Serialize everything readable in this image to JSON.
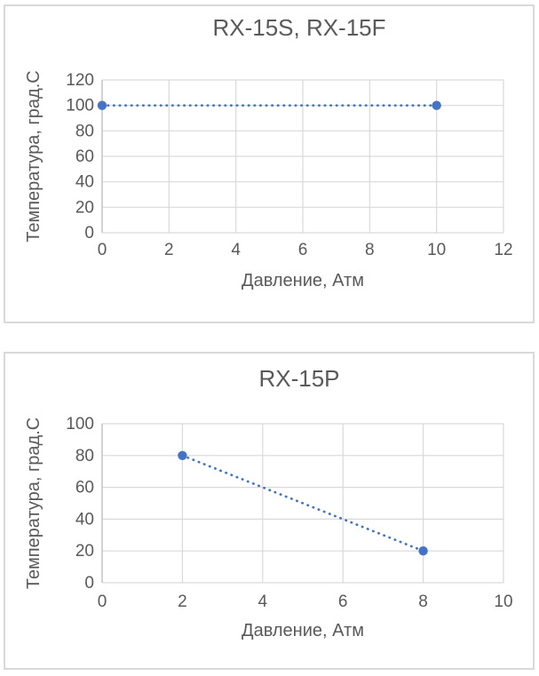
{
  "page": {
    "background_color": "#FFFFFF",
    "panel_border_color": "#D9D9D9"
  },
  "chart_data": [
    {
      "type": "scatter",
      "title": "RX-15S, RX-15F",
      "xlabel": "Давление, Атм",
      "ylabel": "Температура, град.С",
      "xlim": [
        0,
        12
      ],
      "ylim": [
        0,
        120
      ],
      "x_ticks": [
        0,
        2,
        4,
        6,
        8,
        10,
        12
      ],
      "y_ticks": [
        120,
        100,
        80,
        60,
        40,
        20,
        0
      ],
      "grid": true,
      "legend": "none",
      "line_style": "dotted",
      "marker": "circle",
      "series": [
        {
          "name": "RX-15S, RX-15F",
          "points": [
            [
              0,
              100
            ],
            [
              10,
              100
            ]
          ]
        }
      ],
      "colors": {
        "series": "#4472C4",
        "grid": "#D9D9D9",
        "axis_line": "#C6C6C6",
        "text": "#595959"
      }
    },
    {
      "type": "scatter",
      "title": "RX-15P",
      "xlabel": "Давление, Атм",
      "ylabel": "Температура, град.С",
      "xlim": [
        0,
        10
      ],
      "ylim": [
        0,
        100
      ],
      "x_ticks": [
        0,
        2,
        4,
        6,
        8,
        10
      ],
      "y_ticks": [
        100,
        80,
        60,
        40,
        20,
        0
      ],
      "grid": true,
      "legend": "none",
      "line_style": "dotted",
      "marker": "circle",
      "series": [
        {
          "name": "RX-15P",
          "points": [
            [
              2,
              80
            ],
            [
              8,
              20
            ]
          ]
        }
      ],
      "colors": {
        "series": "#4472C4",
        "grid": "#D9D9D9",
        "axis_line": "#C6C6C6",
        "text": "#595959"
      }
    }
  ]
}
